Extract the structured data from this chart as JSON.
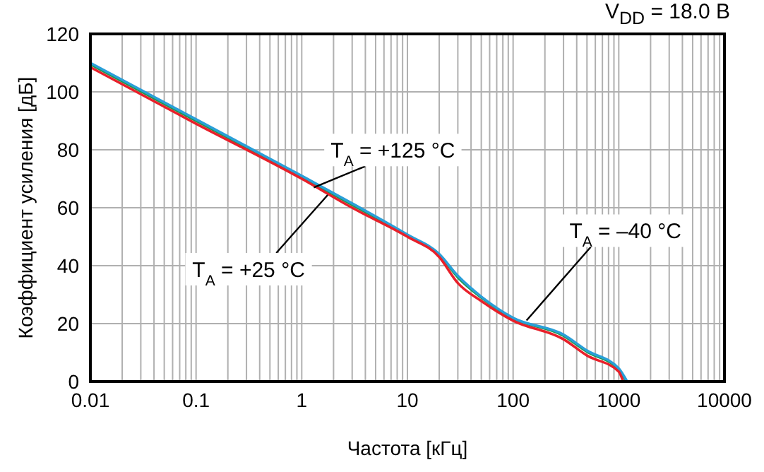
{
  "chart_data": {
    "type": "line",
    "title": "V$_{DD}$ = 18.0 В",
    "xlabel": "Частота [кГц]",
    "ylabel": "Коэффициент усиления [дБ]",
    "log": "x",
    "xlim": [
      0.01,
      10000
    ],
    "xticks": [
      0.01,
      0.1,
      1,
      10,
      100,
      1000,
      10000
    ],
    "ylim": [
      0,
      120
    ],
    "yticks": [
      0,
      20,
      40,
      60,
      80,
      100,
      120
    ],
    "grid": true,
    "line_style": "solid",
    "series": [
      {
        "color": "#1a9a50",
        "x": [
          0.01,
          0.1,
          1,
          3,
          10,
          20,
          30,
          50,
          100,
          300,
          500,
          1000,
          1180
        ],
        "values": [
          109.5,
          90,
          70.6,
          61,
          50.5,
          43.8,
          36,
          29,
          21.8,
          15.8,
          10.3,
          4.2,
          0
        ]
      },
      {
        "color": "#2a9fd8",
        "x": [
          0.01,
          0.1,
          1,
          3,
          10,
          20,
          30,
          50,
          100,
          300,
          500,
          1000,
          1200
        ],
        "values": [
          110,
          90.5,
          71,
          61.5,
          50.7,
          44,
          36.5,
          29.3,
          22,
          16.2,
          10.7,
          4.5,
          0
        ]
      },
      {
        "color": "#e8202a",
        "x": [
          0.01,
          0.1,
          1,
          3,
          10,
          20,
          30,
          50,
          100,
          300,
          500,
          1000,
          1100
        ],
        "values": [
          108.5,
          89,
          70,
          60,
          50,
          43,
          34,
          27.8,
          21,
          14.6,
          9,
          3.4,
          0
        ]
      }
    ],
    "annotations": [
      {
        "text": "T$_{A}$ = +125 °C",
        "x": 1.3,
        "y": 67
      },
      {
        "text": "T$_{A}$ = +25 °C",
        "x": 1.76,
        "y": 64.4
      },
      {
        "text": "T$_{A}$ = –40 °C",
        "x": 134,
        "y": 21.1
      }
    ]
  }
}
